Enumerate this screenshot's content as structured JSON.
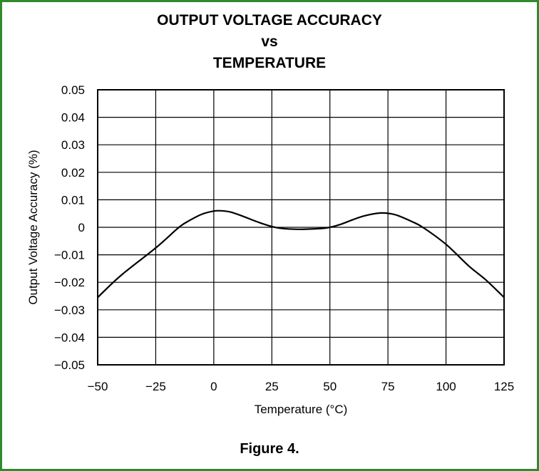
{
  "chart_data": {
    "type": "line",
    "title_lines": [
      "OUTPUT VOLTAGE ACCURACY",
      "vs",
      "TEMPERATURE"
    ],
    "xlabel": "Temperature (°C)",
    "ylabel": "Output Voltage Accuracy (%)",
    "xlim": [
      -50,
      125
    ],
    "ylim": [
      -0.05,
      0.05
    ],
    "x_ticks": [
      "−50",
      "−25",
      "0",
      "25",
      "50",
      "75",
      "100",
      "125"
    ],
    "y_ticks": [
      "0.05",
      "0.04",
      "0.03",
      "0.02",
      "0.01",
      "0",
      "−0.01",
      "−0.02",
      "−0.03",
      "−0.04",
      "−0.05"
    ],
    "grid": true,
    "series": [
      {
        "x": [
          -50,
          -40,
          -25,
          -15,
          -10,
          -5,
          0,
          3,
          7,
          12,
          20,
          27,
          35,
          45,
          50,
          55,
          60,
          65,
          72,
          78,
          85,
          90,
          100,
          110,
          117,
          125
        ],
        "y": [
          -0.0255,
          -0.0175,
          -0.0075,
          0.0,
          0.0027,
          0.0048,
          0.0059,
          0.006,
          0.0056,
          0.0042,
          0.0016,
          -0.0001,
          -0.0007,
          -0.0005,
          0.0,
          0.0012,
          0.0028,
          0.0042,
          0.0052,
          0.0046,
          0.0022,
          0.0,
          -0.0062,
          -0.0142,
          -0.019,
          -0.0255
        ]
      }
    ]
  },
  "caption": "Figure 4."
}
